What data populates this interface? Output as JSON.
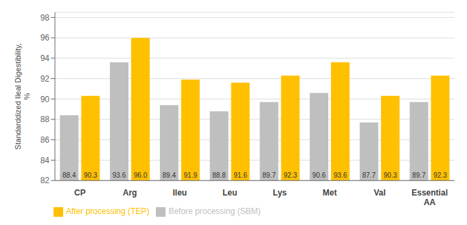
{
  "chart_data": {
    "type": "bar",
    "categories": [
      "CP",
      "Arg",
      "Ileu",
      "Leu",
      "Lys",
      "Met",
      "Val",
      "Essential\nAA"
    ],
    "series": [
      {
        "name": "Before processing (SBM)",
        "color": "#BFBFBF",
        "values": [
          88.4,
          93.6,
          89.4,
          88.8,
          89.7,
          90.6,
          87.7,
          89.7
        ],
        "value_labels": [
          "88.4",
          "93.6",
          "89.4",
          "88.8",
          "89.7",
          "90.6",
          "87.7",
          "89.7"
        ]
      },
      {
        "name": "After processing (TEP)",
        "color": "#FFC000",
        "values": [
          90.3,
          96.0,
          91.9,
          91.6,
          92.3,
          93.6,
          90.3,
          92.3
        ],
        "value_labels": [
          "90.3",
          "96.0",
          "91.9",
          "91.6",
          "92.3",
          "93.6",
          "90.3",
          "92.3"
        ]
      }
    ],
    "ylabel": "Standarddized Ileal Digestibility,\n%",
    "ylim": [
      82,
      98.5
    ],
    "yticks": [
      82,
      84,
      86,
      88,
      90,
      92,
      94,
      96,
      98
    ],
    "grid": true,
    "legend": "lower left",
    "data_labels": true
  }
}
